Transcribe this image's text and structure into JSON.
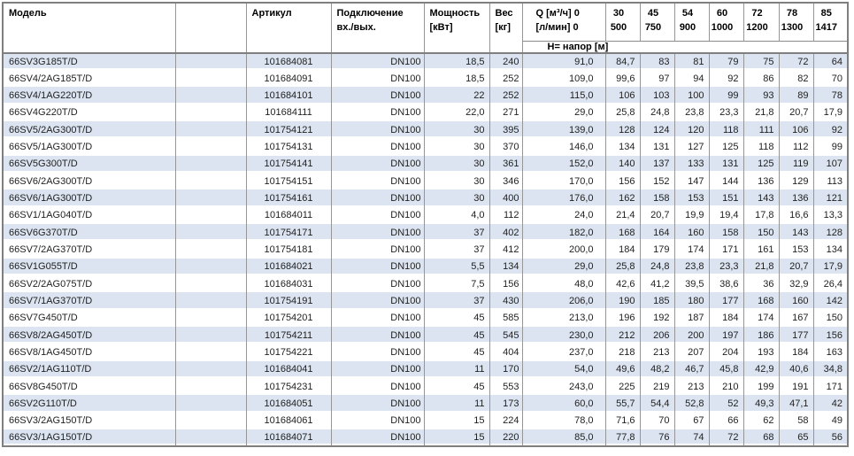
{
  "header": {
    "model": "Модель",
    "article": "Артикул",
    "connection_line1": "Подключение",
    "connection_line2": "вх./вых.",
    "power_line1": "Мощность",
    "power_line2": "[кВт]",
    "weight_line1": "Вес",
    "weight_line2": "[кг]",
    "q_line1": "Q [м³/ч] 0",
    "q_line2": "[л/мин] 0",
    "head_label": "Н= напор [м]",
    "flow_columns": [
      {
        "m3h": "30",
        "lmin": "500"
      },
      {
        "m3h": "45",
        "lmin": "750"
      },
      {
        "m3h": "54",
        "lmin": "900"
      },
      {
        "m3h": "60",
        "lmin": "1000"
      },
      {
        "m3h": "72",
        "lmin": "1200"
      },
      {
        "m3h": "78",
        "lmin": "1300"
      },
      {
        "m3h": "85",
        "lmin": "1417"
      }
    ]
  },
  "rows": [
    {
      "model": "66SV3G185T/D",
      "article": "101684081",
      "connection": "DN100",
      "power": "18,5",
      "weight": "240",
      "heads": [
        "91,0",
        "84,7",
        "83",
        "81",
        "79",
        "75",
        "72",
        "64"
      ]
    },
    {
      "model": "66SV4/2AG185T/D",
      "article": "101684091",
      "connection": "DN100",
      "power": "18,5",
      "weight": "252",
      "heads": [
        "109,0",
        "99,6",
        "97",
        "94",
        "92",
        "86",
        "82",
        "70"
      ]
    },
    {
      "model": "66SV4/1AG220T/D",
      "article": "101684101",
      "connection": "DN100",
      "power": "22",
      "weight": "252",
      "heads": [
        "115,0",
        "106",
        "103",
        "100",
        "99",
        "93",
        "89",
        "78"
      ]
    },
    {
      "model": "66SV4G220T/D",
      "article": "101684111",
      "connection": "DN100",
      "power": "22,0",
      "weight": "271",
      "heads": [
        "29,0",
        "25,8",
        "24,8",
        "23,8",
        "23,3",
        "21,8",
        "20,7",
        "17,9"
      ]
    },
    {
      "model": "66SV5/2AG300T/D",
      "article": "101754121",
      "connection": "DN100",
      "power": "30",
      "weight": "395",
      "heads": [
        "139,0",
        "128",
        "124",
        "120",
        "118",
        "111",
        "106",
        "92"
      ]
    },
    {
      "model": "66SV5/1AG300T/D",
      "article": "101754131",
      "connection": "DN100",
      "power": "30",
      "weight": "370",
      "heads": [
        "146,0",
        "134",
        "131",
        "127",
        "125",
        "118",
        "112",
        "99"
      ]
    },
    {
      "model": "66SV5G300T/D",
      "article": "101754141",
      "connection": "DN100",
      "power": "30",
      "weight": "361",
      "heads": [
        "152,0",
        "140",
        "137",
        "133",
        "131",
        "125",
        "119",
        "107"
      ]
    },
    {
      "model": "66SV6/2AG300T/D",
      "article": "101754151",
      "connection": "DN100",
      "power": "30",
      "weight": "346",
      "heads": [
        "170,0",
        "156",
        "152",
        "147",
        "144",
        "136",
        "129",
        "113"
      ]
    },
    {
      "model": "66SV6/1AG300T/D",
      "article": "101754161",
      "connection": "DN100",
      "power": "30",
      "weight": "400",
      "heads": [
        "176,0",
        "162",
        "158",
        "153",
        "151",
        "143",
        "136",
        "121"
      ]
    },
    {
      "model": "66SV1/1AG040T/D",
      "article": "101684011",
      "connection": "DN100",
      "power": "4,0",
      "weight": "112",
      "heads": [
        "24,0",
        "21,4",
        "20,7",
        "19,9",
        "19,4",
        "17,8",
        "16,6",
        "13,3"
      ]
    },
    {
      "model": "66SV6G370T/D",
      "article": "101754171",
      "connection": "DN100",
      "power": "37",
      "weight": "402",
      "heads": [
        "182,0",
        "168",
        "164",
        "160",
        "158",
        "150",
        "143",
        "128"
      ]
    },
    {
      "model": "66SV7/2AG370T/D",
      "article": "101754181",
      "connection": "DN100",
      "power": "37",
      "weight": "412",
      "heads": [
        "200,0",
        "184",
        "179",
        "174",
        "171",
        "161",
        "153",
        "134"
      ]
    },
    {
      "model": "66SV1G055T/D",
      "article": "101684021",
      "connection": "DN100",
      "power": "5,5",
      "weight": "134",
      "heads": [
        "29,0",
        "25,8",
        "24,8",
        "23,8",
        "23,3",
        "21,8",
        "20,7",
        "17,9"
      ]
    },
    {
      "model": "66SV2/2AG075T/D",
      "article": "101684031",
      "connection": "DN100",
      "power": "7,5",
      "weight": "156",
      "heads": [
        "48,0",
        "42,6",
        "41,2",
        "39,5",
        "38,6",
        "36",
        "32,9",
        "26,4"
      ]
    },
    {
      "model": "66SV7/1AG370T/D",
      "article": "101754191",
      "connection": "DN100",
      "power": "37",
      "weight": "430",
      "heads": [
        "206,0",
        "190",
        "185",
        "180",
        "177",
        "168",
        "160",
        "142"
      ]
    },
    {
      "model": "66SV7G450T/D",
      "article": "101754201",
      "connection": "DN100",
      "power": "45",
      "weight": "585",
      "heads": [
        "213,0",
        "196",
        "192",
        "187",
        "184",
        "174",
        "167",
        "150"
      ]
    },
    {
      "model": "66SV8/2AG450T/D",
      "article": "101754211",
      "connection": "DN100",
      "power": "45",
      "weight": "545",
      "heads": [
        "230,0",
        "212",
        "206",
        "200",
        "197",
        "186",
        "177",
        "156"
      ]
    },
    {
      "model": "66SV8/1AG450T/D",
      "article": "101754221",
      "connection": "DN100",
      "power": "45",
      "weight": "404",
      "heads": [
        "237,0",
        "218",
        "213",
        "207",
        "204",
        "193",
        "184",
        "163"
      ]
    },
    {
      "model": "66SV2/1AG110T/D",
      "article": "101684041",
      "connection": "DN100",
      "power": "11",
      "weight": "170",
      "heads": [
        "54,0",
        "49,6",
        "48,2",
        "46,7",
        "45,8",
        "42,9",
        "40,6",
        "34,8"
      ]
    },
    {
      "model": "66SV8G450T/D",
      "article": "101754231",
      "connection": "DN100",
      "power": "45",
      "weight": "553",
      "heads": [
        "243,0",
        "225",
        "219",
        "213",
        "210",
        "199",
        "191",
        "171"
      ]
    },
    {
      "model": "66SV2G110T/D",
      "article": "101684051",
      "connection": "DN100",
      "power": "11",
      "weight": "173",
      "heads": [
        "60,0",
        "55,7",
        "54,4",
        "52,8",
        "52",
        "49,3",
        "47,1",
        "42"
      ]
    },
    {
      "model": "66SV3/2AG150T/D",
      "article": "101684061",
      "connection": "DN100",
      "power": "15",
      "weight": "224",
      "heads": [
        "78,0",
        "71,6",
        "70",
        "67",
        "66",
        "62",
        "58",
        "49"
      ]
    },
    {
      "model": "66SV3/1AG150T/D",
      "article": "101684071",
      "connection": "DN100",
      "power": "15",
      "weight": "220",
      "heads": [
        "85,0",
        "77,8",
        "76",
        "74",
        "72",
        "68",
        "65",
        "56"
      ]
    }
  ],
  "colors": {
    "row_stripe": "#dbe4f0",
    "grid_line": "#969696",
    "outer_border": "#7f7f7f",
    "header_text": "#000000",
    "data_text": "#1f1f1f"
  }
}
